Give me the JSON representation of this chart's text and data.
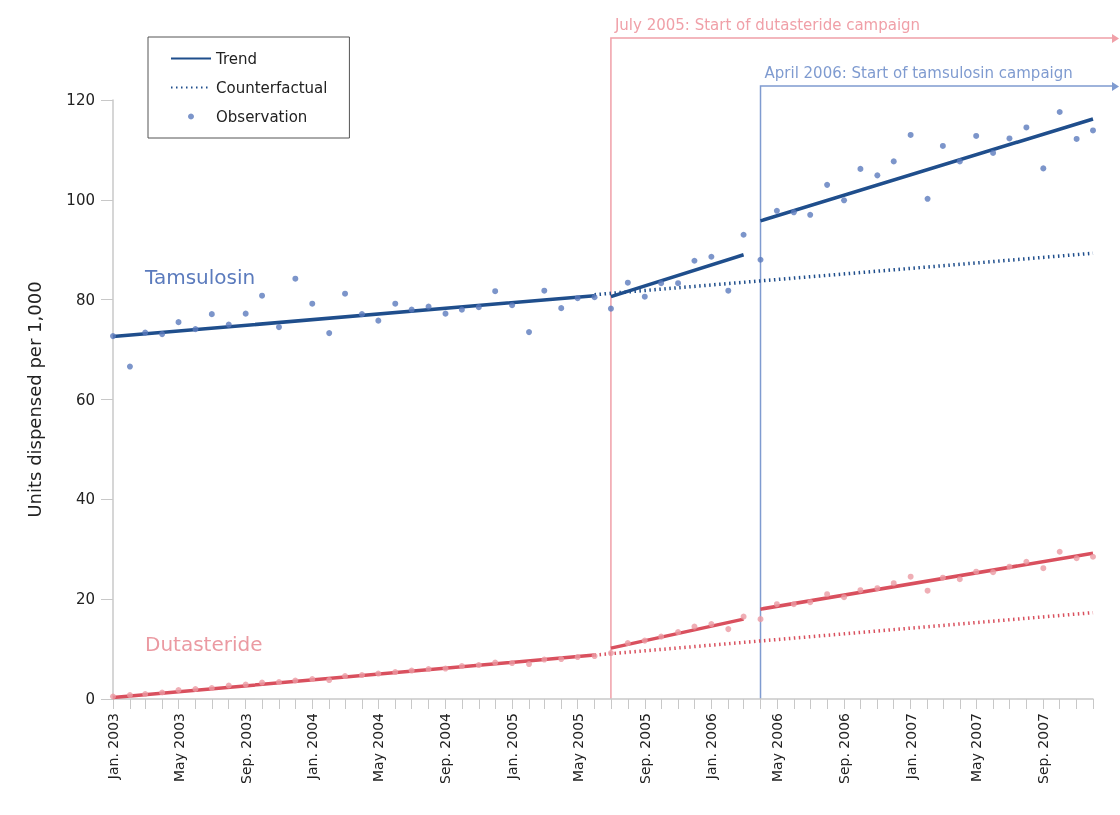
{
  "chart_data": {
    "type": "scatter",
    "ylabel": "Units dispensed per 1,000",
    "x": [
      "2003-01",
      "2003-02",
      "2003-03",
      "2003-04",
      "2003-05",
      "2003-06",
      "2003-07",
      "2003-08",
      "2003-09",
      "2003-10",
      "2003-11",
      "2003-12",
      "2004-01",
      "2004-02",
      "2004-03",
      "2004-04",
      "2004-05",
      "2004-06",
      "2004-07",
      "2004-08",
      "2004-09",
      "2004-10",
      "2004-11",
      "2004-12",
      "2005-01",
      "2005-02",
      "2005-03",
      "2005-04",
      "2005-05",
      "2005-06",
      "2005-07",
      "2005-08",
      "2005-09",
      "2005-10",
      "2005-11",
      "2005-12",
      "2006-01",
      "2006-02",
      "2006-03",
      "2006-04",
      "2006-05",
      "2006-06",
      "2006-07",
      "2006-08",
      "2006-09",
      "2006-10",
      "2006-11",
      "2006-12",
      "2007-01",
      "2007-02",
      "2007-03",
      "2007-04",
      "2007-05",
      "2007-06",
      "2007-07",
      "2007-08",
      "2007-09",
      "2007-10",
      "2007-11",
      "2007-12"
    ],
    "series": [
      {
        "name": "Trend",
        "type": "line",
        "line_style": "solid",
        "color": "#1f4e8c",
        "x": [
          "2003-01",
          "2005-06",
          null,
          "2005-07",
          "2006-03",
          null,
          "2006-04",
          "2007-12"
        ],
        "values": [
          72.6,
          80.8,
          null,
          80.6,
          89.0,
          null,
          95.8,
          116.2
        ]
      },
      {
        "name": "Counterfactual",
        "type": "line",
        "line_style": "dotted",
        "color": "#1f4e8c",
        "x": [
          "2005-06",
          "2007-12"
        ],
        "values": [
          81.0,
          89.3
        ]
      },
      {
        "name": "Observation",
        "color": "#5b7bbd",
        "values": [
          72.7,
          66.6,
          73.4,
          73.1,
          75.5,
          74.1,
          77.1,
          75.0,
          77.2,
          80.8,
          74.5,
          84.2,
          79.2,
          73.3,
          81.2,
          77.1,
          75.8,
          79.2,
          78.0,
          78.6,
          77.2,
          78.0,
          78.5,
          81.7,
          78.9,
          73.5,
          81.8,
          78.3,
          80.3,
          80.5,
          78.2,
          83.4,
          80.6,
          83.3,
          83.3,
          87.8,
          88.6,
          81.8,
          93.0,
          88.0,
          97.8,
          97.5,
          97.0,
          103.0,
          99.9,
          106.2,
          104.9,
          107.7,
          113.0,
          100.2,
          110.8,
          107.7,
          112.8,
          109.4,
          112.3,
          114.5,
          106.3,
          117.6,
          112.2,
          113.9
        ]
      },
      {
        "type": "line",
        "line_style": "solid",
        "color": "#d9505e",
        "x": [
          "2003-01",
          "2005-06",
          null,
          "2005-07",
          "2006-03",
          null,
          "2006-04",
          "2007-12"
        ],
        "values": [
          0.3,
          8.8,
          null,
          10.2,
          16.0,
          null,
          18.0,
          29.2
        ]
      },
      {
        "type": "line",
        "line_style": "dotted",
        "color": "#d9505e",
        "x": [
          "2005-06",
          "2007-12"
        ],
        "values": [
          8.8,
          17.3
        ]
      },
      {
        "color": "#eb9aa2",
        "values": [
          0.5,
          0.8,
          1.0,
          1.3,
          1.8,
          2.0,
          2.2,
          2.7,
          2.9,
          3.3,
          3.4,
          3.7,
          4.0,
          3.8,
          4.6,
          4.8,
          5.1,
          5.4,
          5.7,
          6.0,
          6.1,
          6.6,
          6.8,
          7.3,
          7.2,
          7.0,
          7.9,
          8.0,
          8.4,
          8.6,
          9.2,
          11.2,
          11.7,
          12.5,
          13.4,
          14.5,
          15.0,
          14.0,
          16.5,
          16.0,
          19.0,
          19.0,
          19.4,
          21.0,
          20.4,
          21.8,
          22.2,
          23.2,
          24.5,
          21.7,
          24.3,
          24.0,
          25.5,
          25.4,
          26.5,
          27.5,
          26.2,
          29.5,
          28.2,
          28.5
        ]
      }
    ],
    "annotations": [
      "Tamsulosin",
      "Dutasteride"
    ],
    "ref_lines": [
      {
        "axis": "x",
        "value": "2005-07",
        "label": "July 2005: Start of dutasteride campaign",
        "color": "#f0a0a8"
      },
      {
        "axis": "x",
        "value": "2006-04",
        "label": "April 2006: Start of tamsulosin campaign",
        "color": "#7f9bd0"
      }
    ],
    "xlim": [
      "2003-01",
      "2007-12"
    ],
    "xticks": [
      {
        "value": "2003-01",
        "label": "Jan. 2003"
      },
      {
        "value": "2003-02",
        "label": null
      },
      {
        "value": "2003-03",
        "label": null
      },
      {
        "value": "2003-04",
        "label": null
      },
      {
        "value": "2003-05",
        "label": "May 2003"
      },
      {
        "value": "2003-06",
        "label": null
      },
      {
        "value": "2003-07",
        "label": null
      },
      {
        "value": "2003-08",
        "label": null
      },
      {
        "value": "2003-09",
        "label": "Sep. 2003"
      },
      {
        "value": "2003-10",
        "label": null
      },
      {
        "value": "2003-11",
        "label": null
      },
      {
        "value": "2003-12",
        "label": null
      },
      {
        "value": "2004-01",
        "label": "Jan. 2004"
      },
      {
        "value": "2004-02",
        "label": null
      },
      {
        "value": "2004-03",
        "label": null
      },
      {
        "value": "2004-04",
        "label": null
      },
      {
        "value": "2004-05",
        "label": "May 2004"
      },
      {
        "value": "2004-06",
        "label": null
      },
      {
        "value": "2004-07",
        "label": null
      },
      {
        "value": "2004-08",
        "label": null
      },
      {
        "value": "2004-09",
        "label": "Sep. 2004"
      },
      {
        "value": "2004-10",
        "label": null
      },
      {
        "value": "2004-11",
        "label": null
      },
      {
        "value": "2004-12",
        "label": null
      },
      {
        "value": "2005-01",
        "label": "Jan. 2005"
      },
      {
        "value": "2005-02",
        "label": null
      },
      {
        "value": "2005-03",
        "label": null
      },
      {
        "value": "2005-04",
        "label": null
      },
      {
        "value": "2005-05",
        "label": "May 2005"
      },
      {
        "value": "2005-06",
        "label": null
      },
      {
        "value": "2005-07",
        "label": null
      },
      {
        "value": "2005-08",
        "label": null
      },
      {
        "value": "2005-09",
        "label": "Sep. 2005"
      },
      {
        "value": "2005-10",
        "label": null
      },
      {
        "value": "2005-11",
        "label": null
      },
      {
        "value": "2005-12",
        "label": null
      },
      {
        "value": "2006-01",
        "label": "Jan. 2006"
      },
      {
        "value": "2006-02",
        "label": null
      },
      {
        "value": "2006-03",
        "label": null
      },
      {
        "value": "2006-04",
        "label": null
      },
      {
        "value": "2006-05",
        "label": "May 2006"
      },
      {
        "value": "2006-06",
        "label": null
      },
      {
        "value": "2006-07",
        "label": null
      },
      {
        "value": "2006-08",
        "label": null
      },
      {
        "value": "2006-09",
        "label": "Sep. 2006"
      },
      {
        "value": "2006-10",
        "label": null
      },
      {
        "value": "2006-11",
        "label": null
      },
      {
        "value": "2006-12",
        "label": null
      },
      {
        "value": "2007-01",
        "label": "Jan. 2007"
      },
      {
        "value": "2007-02",
        "label": null
      },
      {
        "value": "2007-03",
        "label": null
      },
      {
        "value": "2007-04",
        "label": null
      },
      {
        "value": "2007-05",
        "label": "May 2007"
      },
      {
        "value": "2007-06",
        "label": null
      },
      {
        "value": "2007-07",
        "label": null
      },
      {
        "value": "2007-08",
        "label": null
      },
      {
        "value": "2007-09",
        "label": "Sep. 2007"
      },
      {
        "value": "2007-10",
        "label": null
      },
      {
        "value": "2007-11",
        "label": null
      },
      {
        "value": "2007-12",
        "label": null
      }
    ],
    "ylim": [
      0,
      120
    ],
    "yticks": [
      0,
      20,
      40,
      60,
      80,
      100,
      120
    ],
    "grid": false,
    "legend": "top left"
  }
}
